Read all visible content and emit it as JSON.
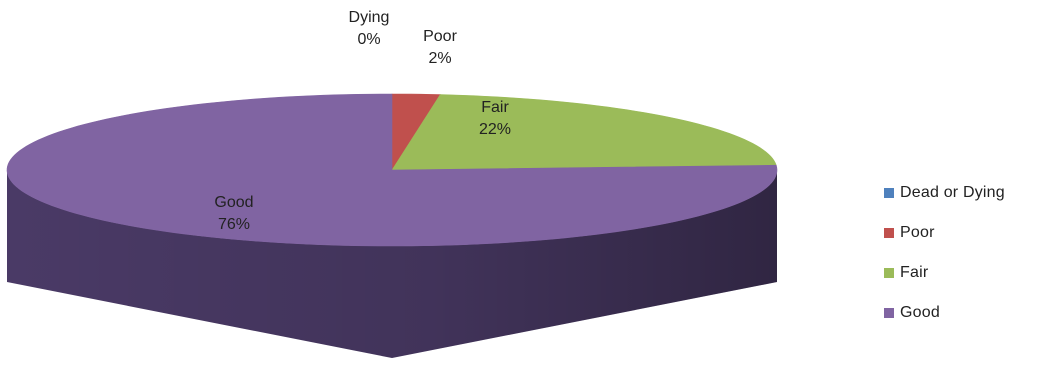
{
  "chart_data": {
    "type": "pie",
    "title": "",
    "three_d": true,
    "categories": [
      "Dead or Dying",
      "Poor",
      "Fair",
      "Good"
    ],
    "values": [
      0,
      2,
      22,
      76
    ],
    "unit": "%",
    "data_labels": [
      {
        "name_lines": [
          "Dead or",
          "Dying"
        ],
        "value_label": "0%"
      },
      {
        "name_lines": [
          "Poor"
        ],
        "value_label": "2%"
      },
      {
        "name_lines": [
          "Fair"
        ],
        "value_label": "22%"
      },
      {
        "name_lines": [
          "Good"
        ],
        "value_label": "76%"
      }
    ],
    "colors": [
      "#4F81BD",
      "#C0504D",
      "#9BBB59",
      "#8064A2"
    ],
    "side_colors": [
      "#30547e",
      "#7d2e2c",
      "#5f7a31",
      "#4a3a66"
    ],
    "legend": {
      "position": "right",
      "entries": [
        "Dead or Dying",
        "Poor",
        "Fair",
        "Good"
      ]
    }
  }
}
